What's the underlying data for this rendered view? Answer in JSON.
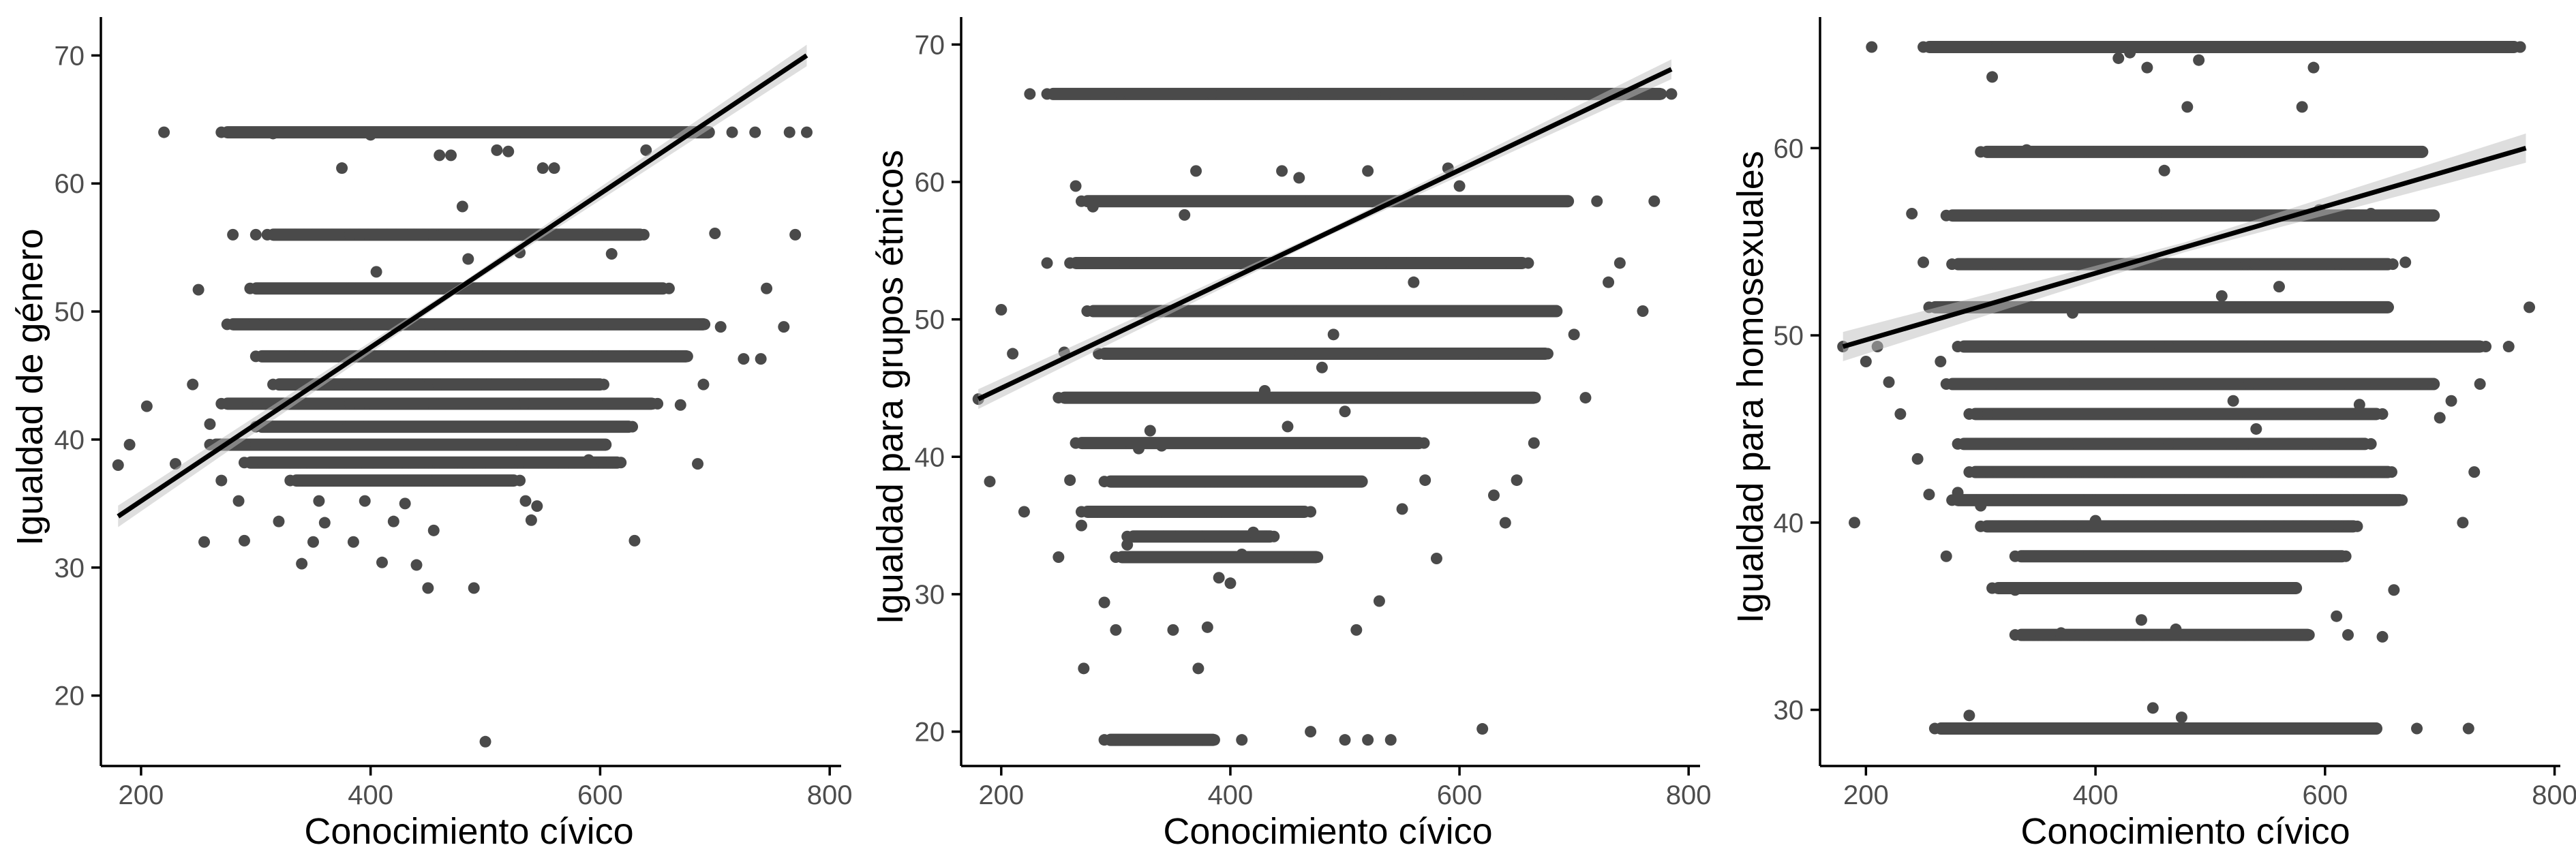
{
  "chart_data": [
    {
      "type": "scatter",
      "xlabel": "Conocimiento cívico",
      "ylabel": "Igualdad de género",
      "xlim": [
        165,
        810
      ],
      "ylim": [
        14.5,
        73
      ],
      "xticks": [
        200,
        400,
        600,
        800
      ],
      "yticks": [
        20,
        30,
        40,
        50,
        60,
        70
      ],
      "grid": false,
      "legend": "none",
      "point_color": "#4a4a4a",
      "fit": {
        "x": [
          180,
          780
        ],
        "y": [
          34,
          70
        ],
        "ci": 0.7
      },
      "bands": [
        {
          "y": 64,
          "xmin": 270,
          "xmax": 700
        },
        {
          "y": 56,
          "xmin": 310,
          "xmax": 640
        },
        {
          "y": 51.8,
          "xmin": 295,
          "xmax": 660
        },
        {
          "y": 49,
          "xmin": 275,
          "xmax": 695
        },
        {
          "y": 46.5,
          "xmin": 300,
          "xmax": 680
        },
        {
          "y": 44.3,
          "xmin": 315,
          "xmax": 605
        },
        {
          "y": 42.8,
          "xmin": 270,
          "xmax": 650
        },
        {
          "y": 41,
          "xmin": 300,
          "xmax": 630
        },
        {
          "y": 39.6,
          "xmin": 260,
          "xmax": 610
        },
        {
          "y": 38.2,
          "xmin": 290,
          "xmax": 620
        },
        {
          "y": 36.8,
          "xmin": 330,
          "xmax": 530
        }
      ],
      "points": [
        [
          180,
          38
        ],
        [
          190,
          39.6
        ],
        [
          205,
          42.6
        ],
        [
          220,
          64
        ],
        [
          230,
          38.1
        ],
        [
          245,
          44.3
        ],
        [
          250,
          51.7
        ],
        [
          255,
          32
        ],
        [
          260,
          41.2
        ],
        [
          270,
          36.8
        ],
        [
          280,
          56
        ],
        [
          285,
          35.2
        ],
        [
          290,
          32.1
        ],
        [
          300,
          56
        ],
        [
          315,
          63.9
        ],
        [
          320,
          33.6
        ],
        [
          330,
          64
        ],
        [
          340,
          30.3
        ],
        [
          350,
          32
        ],
        [
          355,
          35.2
        ],
        [
          360,
          33.5
        ],
        [
          375,
          61.2
        ],
        [
          380,
          64
        ],
        [
          385,
          32
        ],
        [
          395,
          35.2
        ],
        [
          400,
          63.8
        ],
        [
          405,
          53.1
        ],
        [
          410,
          30.4
        ],
        [
          420,
          33.6
        ],
        [
          425,
          48.9
        ],
        [
          430,
          35
        ],
        [
          440,
          30.2
        ],
        [
          450,
          28.4
        ],
        [
          455,
          32.9
        ],
        [
          460,
          62.2
        ],
        [
          470,
          62.2
        ],
        [
          480,
          58.2
        ],
        [
          485,
          54.1
        ],
        [
          490,
          28.4
        ],
        [
          500,
          16.4
        ],
        [
          510,
          62.6
        ],
        [
          520,
          62.5
        ],
        [
          530,
          54.6
        ],
        [
          535,
          35.2
        ],
        [
          540,
          33.7
        ],
        [
          545,
          34.8
        ],
        [
          550,
          61.2
        ],
        [
          560,
          61.2
        ],
        [
          575,
          44.3
        ],
        [
          590,
          38.4
        ],
        [
          610,
          54.5
        ],
        [
          630,
          32.1
        ],
        [
          640,
          62.6
        ],
        [
          650,
          42.8
        ],
        [
          660,
          51.8
        ],
        [
          670,
          42.7
        ],
        [
          685,
          38.1
        ],
        [
          700,
          56.1
        ],
        [
          705,
          48.8
        ],
        [
          715,
          64
        ],
        [
          735,
          64
        ],
        [
          740,
          46.3
        ],
        [
          745,
          51.8
        ],
        [
          760,
          48.8
        ],
        [
          765,
          64
        ],
        [
          770,
          56
        ],
        [
          780,
          64
        ],
        [
          725,
          46.3
        ],
        [
          690,
          44.3
        ]
      ]
    },
    {
      "type": "scatter",
      "xlabel": "Conocimiento cívico",
      "ylabel": "Igualdad para grupos étnicos",
      "xlim": [
        165,
        810
      ],
      "ylim": [
        17.5,
        72
      ],
      "xticks": [
        200,
        400,
        600,
        800
      ],
      "yticks": [
        20,
        30,
        40,
        50,
        60,
        70
      ],
      "grid": false,
      "legend": "none",
      "point_color": "#4a4a4a",
      "fit": {
        "x": [
          180,
          785
        ],
        "y": [
          44.2,
          68.2
        ],
        "ci": 0.6
      },
      "bands": [
        {
          "y": 66.4,
          "xmin": 240,
          "xmax": 780
        },
        {
          "y": 58.6,
          "xmin": 270,
          "xmax": 700
        },
        {
          "y": 54.1,
          "xmin": 260,
          "xmax": 660
        },
        {
          "y": 50.6,
          "xmin": 275,
          "xmax": 690
        },
        {
          "y": 47.5,
          "xmin": 285,
          "xmax": 680
        },
        {
          "y": 44.3,
          "xmin": 250,
          "xmax": 670
        },
        {
          "y": 41,
          "xmin": 265,
          "xmax": 570
        },
        {
          "y": 38.2,
          "xmin": 290,
          "xmax": 520
        },
        {
          "y": 36,
          "xmin": 270,
          "xmax": 470
        },
        {
          "y": 34.2,
          "xmin": 310,
          "xmax": 440
        },
        {
          "y": 32.7,
          "xmin": 300,
          "xmax": 480
        },
        {
          "y": 19.4,
          "xmin": 290,
          "xmax": 390
        }
      ],
      "points": [
        [
          180,
          44.2
        ],
        [
          190,
          38.2
        ],
        [
          200,
          50.7
        ],
        [
          210,
          47.5
        ],
        [
          220,
          36
        ],
        [
          225,
          66.4
        ],
        [
          240,
          54.1
        ],
        [
          250,
          32.7
        ],
        [
          255,
          47.6
        ],
        [
          260,
          38.3
        ],
        [
          265,
          59.7
        ],
        [
          270,
          35
        ],
        [
          272,
          24.6
        ],
        [
          280,
          58.2
        ],
        [
          290,
          29.4
        ],
        [
          300,
          27.4
        ],
        [
          310,
          33.6
        ],
        [
          320,
          40.6
        ],
        [
          330,
          41.9
        ],
        [
          340,
          40.8
        ],
        [
          350,
          27.4
        ],
        [
          360,
          57.6
        ],
        [
          370,
          60.8
        ],
        [
          372,
          24.6
        ],
        [
          380,
          27.6
        ],
        [
          390,
          31.2
        ],
        [
          400,
          30.8
        ],
        [
          410,
          32.9
        ],
        [
          420,
          34.5
        ],
        [
          430,
          44.8
        ],
        [
          445,
          60.8
        ],
        [
          450,
          42.2
        ],
        [
          460,
          60.3
        ],
        [
          470,
          20
        ],
        [
          480,
          46.5
        ],
        [
          490,
          48.9
        ],
        [
          500,
          43.3
        ],
        [
          510,
          27.4
        ],
        [
          520,
          60.8
        ],
        [
          530,
          29.5
        ],
        [
          540,
          19.4
        ],
        [
          550,
          36.2
        ],
        [
          560,
          52.7
        ],
        [
          570,
          38.3
        ],
        [
          580,
          32.6
        ],
        [
          590,
          61
        ],
        [
          600,
          59.7
        ],
        [
          620,
          20.2
        ],
        [
          630,
          37.2
        ],
        [
          640,
          35.2
        ],
        [
          650,
          38.3
        ],
        [
          665,
          41
        ],
        [
          680,
          50.6
        ],
        [
          700,
          48.9
        ],
        [
          710,
          44.3
        ],
        [
          720,
          58.6
        ],
        [
          730,
          52.7
        ],
        [
          740,
          54.1
        ],
        [
          760,
          50.6
        ],
        [
          770,
          58.6
        ],
        [
          785,
          66.4
        ],
        [
          500,
          19.4
        ],
        [
          520,
          19.4
        ],
        [
          410,
          19.4
        ]
      ]
    },
    {
      "type": "scatter",
      "xlabel": "Conocimiento cívico",
      "ylabel": "Igualdad para homosexuales",
      "xlim": [
        160,
        805
      ],
      "ylim": [
        27,
        67
      ],
      "xticks": [
        200,
        400,
        600,
        800
      ],
      "yticks": [
        30,
        40,
        50,
        60
      ],
      "grid": false,
      "legend": "none",
      "point_color": "#4a4a4a",
      "fit": {
        "x": [
          180,
          775
        ],
        "y": [
          49.4,
          60
        ],
        "ci": 0.65
      },
      "bands": [
        {
          "y": 65.4,
          "xmin": 250,
          "xmax": 770
        },
        {
          "y": 59.8,
          "xmin": 300,
          "xmax": 690
        },
        {
          "y": 56.4,
          "xmin": 270,
          "xmax": 700
        },
        {
          "y": 53.8,
          "xmin": 275,
          "xmax": 660
        },
        {
          "y": 51.5,
          "xmin": 255,
          "xmax": 660
        },
        {
          "y": 49.4,
          "xmin": 280,
          "xmax": 740
        },
        {
          "y": 47.4,
          "xmin": 270,
          "xmax": 700
        },
        {
          "y": 45.8,
          "xmin": 290,
          "xmax": 650
        },
        {
          "y": 44.2,
          "xmin": 280,
          "xmax": 640
        },
        {
          "y": 42.7,
          "xmin": 290,
          "xmax": 660
        },
        {
          "y": 41.2,
          "xmin": 275,
          "xmax": 670
        },
        {
          "y": 39.8,
          "xmin": 300,
          "xmax": 630
        },
        {
          "y": 38.2,
          "xmin": 330,
          "xmax": 620
        },
        {
          "y": 36.5,
          "xmin": 310,
          "xmax": 580
        },
        {
          "y": 34,
          "xmin": 330,
          "xmax": 590
        },
        {
          "y": 29,
          "xmin": 260,
          "xmax": 650
        }
      ],
      "points": [
        [
          180,
          49.4
        ],
        [
          190,
          40
        ],
        [
          200,
          48.6
        ],
        [
          205,
          65.4
        ],
        [
          210,
          49.4
        ],
        [
          220,
          47.5
        ],
        [
          230,
          45.8
        ],
        [
          240,
          56.5
        ],
        [
          245,
          43.4
        ],
        [
          250,
          53.9
        ],
        [
          255,
          41.5
        ],
        [
          260,
          51.5
        ],
        [
          265,
          48.6
        ],
        [
          270,
          38.2
        ],
        [
          280,
          41.6
        ],
        [
          290,
          29.7
        ],
        [
          300,
          40.9
        ],
        [
          310,
          63.8
        ],
        [
          320,
          36.5
        ],
        [
          330,
          36.4
        ],
        [
          340,
          59.9
        ],
        [
          350,
          34
        ],
        [
          360,
          34
        ],
        [
          370,
          34.1
        ],
        [
          380,
          51.2
        ],
        [
          390,
          34
        ],
        [
          400,
          40.1
        ],
        [
          420,
          64.8
        ],
        [
          430,
          65.1
        ],
        [
          440,
          34.8
        ],
        [
          445,
          64.3
        ],
        [
          450,
          30.1
        ],
        [
          460,
          58.8
        ],
        [
          470,
          34.3
        ],
        [
          475,
          29.6
        ],
        [
          480,
          62.2
        ],
        [
          490,
          64.7
        ],
        [
          500,
          59.8
        ],
        [
          510,
          52.1
        ],
        [
          520,
          46.5
        ],
        [
          540,
          45
        ],
        [
          560,
          52.6
        ],
        [
          580,
          62.2
        ],
        [
          590,
          64.3
        ],
        [
          595,
          56.7
        ],
        [
          610,
          35
        ],
        [
          620,
          34
        ],
        [
          630,
          46.3
        ],
        [
          640,
          56.5
        ],
        [
          650,
          33.9
        ],
        [
          660,
          36.4
        ],
        [
          670,
          53.9
        ],
        [
          680,
          29
        ],
        [
          700,
          45.6
        ],
        [
          710,
          46.5
        ],
        [
          720,
          40
        ],
        [
          725,
          29
        ],
        [
          730,
          42.7
        ],
        [
          735,
          47.4
        ],
        [
          740,
          49.4
        ],
        [
          760,
          49.4
        ],
        [
          770,
          65.4
        ],
        [
          778,
          51.5
        ]
      ]
    }
  ]
}
